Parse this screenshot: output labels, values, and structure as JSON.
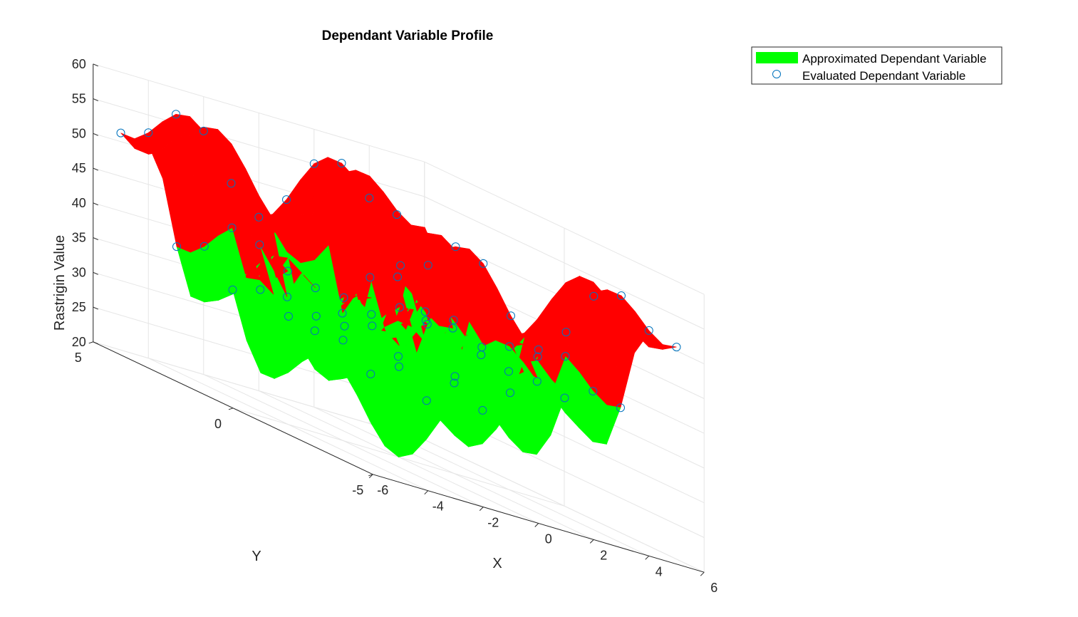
{
  "chart_data": {
    "type": "surface3d",
    "title": "Dependant Variable Profile",
    "xlabel": "X",
    "ylabel": "Y",
    "zlabel": "Rastrigin Value",
    "xlim": [
      -6,
      6
    ],
    "ylim": [
      -5,
      5
    ],
    "zlim": [
      20,
      60
    ],
    "xticks": [
      -6,
      -4,
      -2,
      0,
      2,
      4,
      6
    ],
    "yticks": [
      -5,
      0,
      5
    ],
    "zticks": [
      20,
      25,
      30,
      35,
      40,
      45,
      50,
      55,
      60
    ],
    "grid": true,
    "legend_position": "top-right",
    "series": [
      {
        "name": "Approximated Dependant Variable",
        "style": "surface",
        "color_low": "#00ff00",
        "color_high": "#ff0000"
      },
      {
        "name": "Evaluated Dependant Variable",
        "style": "circle-markers",
        "color": "#0072bd"
      }
    ],
    "function": "Rastrigin",
    "sample_points_x": [
      -5,
      -4,
      -3,
      -2,
      -1,
      0,
      1,
      2,
      3,
      4,
      5
    ],
    "sample_points_y": [
      -5,
      -3,
      -1,
      1,
      3,
      5
    ],
    "surface_resolution": 1
  }
}
